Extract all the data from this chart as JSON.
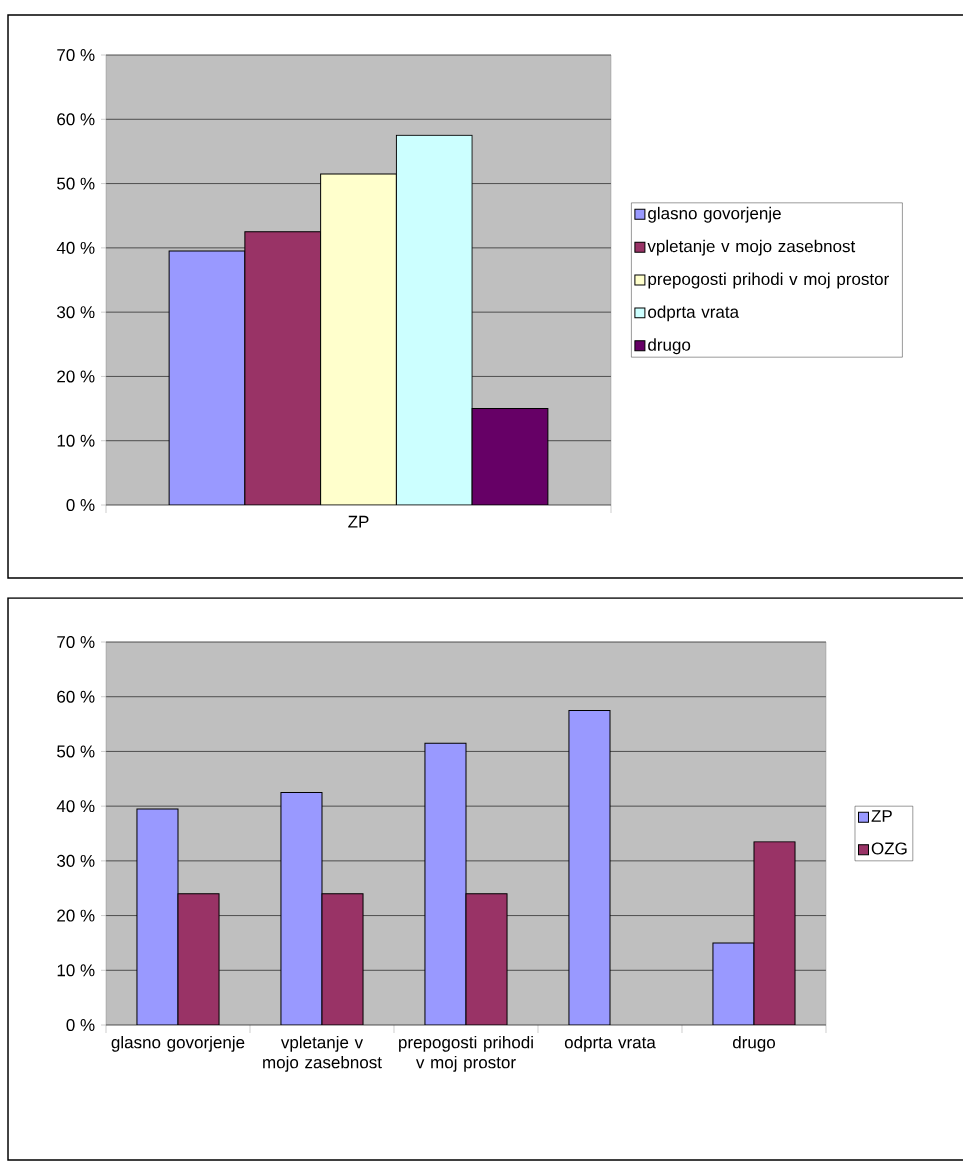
{
  "chart_data": [
    {
      "type": "bar",
      "categories": [
        "ZP"
      ],
      "series": [
        {
          "name": "glasno govorjenje",
          "color": "#9999ff",
          "values": [
            39.5
          ]
        },
        {
          "name": "vpletanje v mojo zasebnost",
          "color": "#993366",
          "values": [
            42.5
          ]
        },
        {
          "name": "prepogosti prihodi v moj prostor",
          "color": "#ffffcc",
          "values": [
            51.5
          ]
        },
        {
          "name": "odprta vrata",
          "color": "#ccffff",
          "values": [
            57.5
          ]
        },
        {
          "name": "drugo",
          "color": "#660066",
          "values": [
            15
          ]
        }
      ],
      "ylim": [
        0,
        70
      ],
      "yticks": [
        {
          "value": 0,
          "label": "0 %"
        },
        {
          "value": 10,
          "label": "10 %"
        },
        {
          "value": 20,
          "label": "20 %"
        },
        {
          "value": 30,
          "label": "30 %"
        },
        {
          "value": 40,
          "label": "40 %"
        },
        {
          "value": 50,
          "label": "50 %"
        },
        {
          "value": 60,
          "label": "60 %"
        },
        {
          "value": 70,
          "label": "70 %"
        }
      ],
      "grid": "y",
      "legend": "right"
    },
    {
      "type": "bar",
      "categories": [
        "glasno govorjenje",
        "vpletanje v mojo zasebnost",
        "prepogosti prihodi v moj prostor",
        "odprta vrata",
        "drugo"
      ],
      "series": [
        {
          "name": "ZP",
          "color": "#9999ff",
          "values": [
            39.5,
            42.5,
            51.5,
            57.5,
            15
          ]
        },
        {
          "name": "OZG",
          "color": "#993366",
          "values": [
            24,
            24,
            24,
            null,
            33.5
          ]
        }
      ],
      "ylim": [
        0,
        70
      ],
      "yticks": [
        {
          "value": 0,
          "label": "0 %"
        },
        {
          "value": 10,
          "label": "10 %"
        },
        {
          "value": 20,
          "label": "20 %"
        },
        {
          "value": 30,
          "label": "30 %"
        },
        {
          "value": 40,
          "label": "40 %"
        },
        {
          "value": 50,
          "label": "50 %"
        },
        {
          "value": 60,
          "label": "60 %"
        },
        {
          "value": 70,
          "label": "70 %"
        }
      ],
      "grid": "y",
      "legend": "right"
    }
  ]
}
